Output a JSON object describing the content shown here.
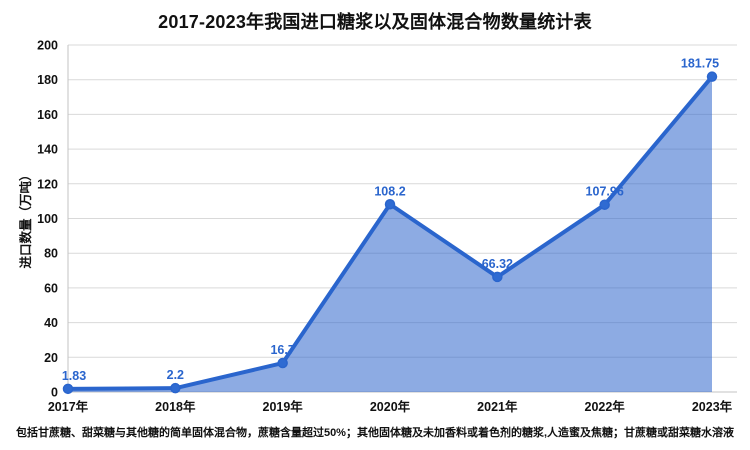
{
  "header": {
    "title": "2017-2023年我国进口糖浆以及固体混合物数量统计表"
  },
  "chart_data": {
    "type": "area",
    "title": "2017-2023年我国进口糖浆以及固体混合物数量统计表",
    "categories": [
      "2017年",
      "2018年",
      "2019年",
      "2020年",
      "2021年",
      "2022年",
      "2023年"
    ],
    "values": [
      1.83,
      2.2,
      16.7,
      108.2,
      66.32,
      107.96,
      181.75
    ],
    "point_labels": [
      "1.83",
      "2.2",
      "16.7",
      "108.2",
      "66.32",
      "107.96",
      "181.75"
    ],
    "xlabel": "",
    "ylabel": "进口数量（万吨）",
    "ylim": [
      0,
      200
    ],
    "ytick_step": 20,
    "yticks": [
      0,
      20,
      40,
      60,
      80,
      100,
      120,
      140,
      160,
      180,
      200
    ],
    "grid": true,
    "legend_position": "none",
    "colors": {
      "line": "#2a65cd",
      "marker": "#2f6bd2",
      "area_fill_rgba": "rgba(47,102,204,0.55)",
      "point_label": "#2a65cd",
      "gridline": "#d9d9d9",
      "axis_line": "#c3c3c3",
      "tick_text": "#111111"
    }
  },
  "footnote": {
    "text": "包括甘蔗糖、甜菜糖与其他糖的简单固体混合物，蔗糖含量超过50%；其他固体糖及未加香料或着色剂的糖浆,人造蜜及焦糖；甘蔗糖或甜菜糖水溶液"
  }
}
